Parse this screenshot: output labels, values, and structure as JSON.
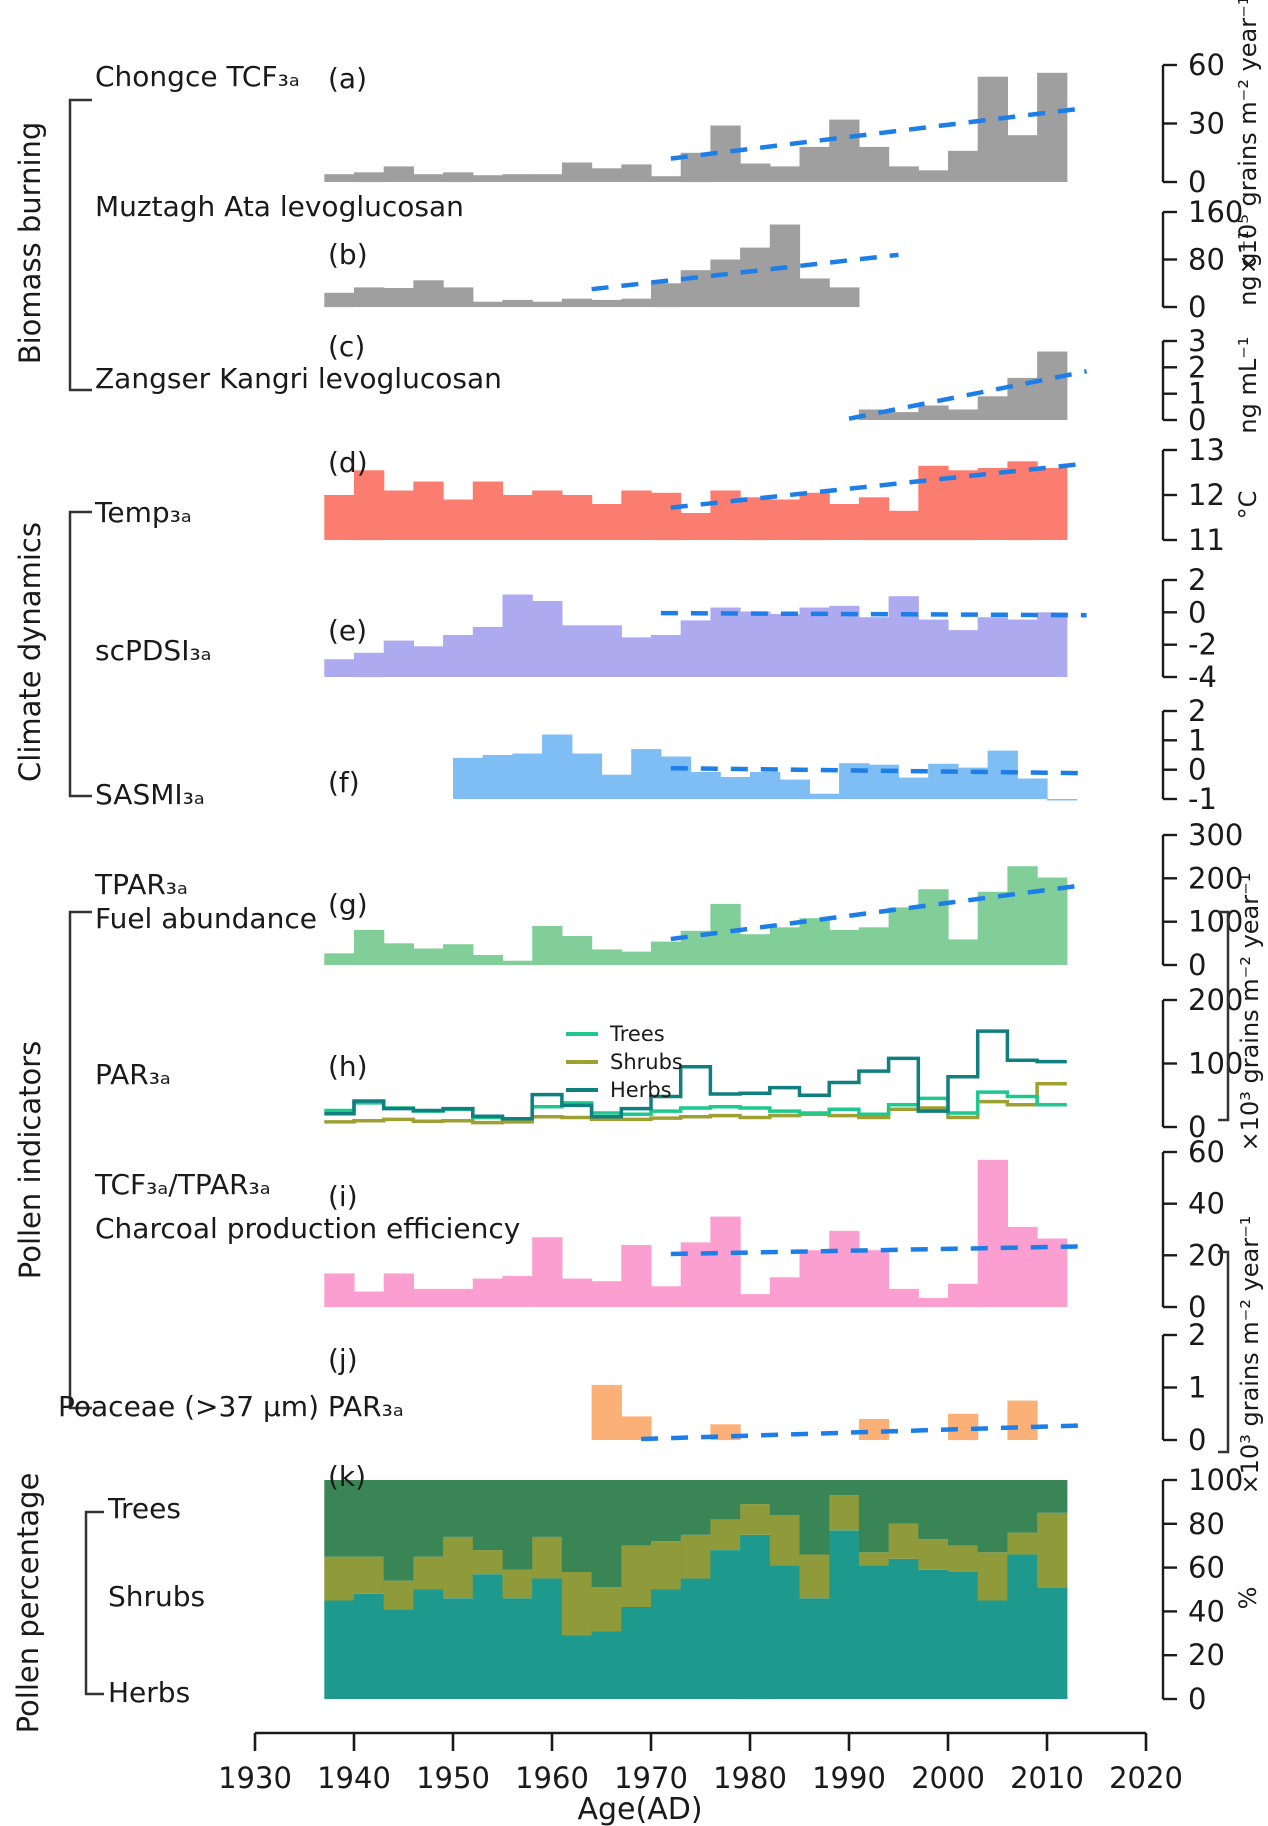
{
  "figure_colors": {
    "gray_bar": "#9f9f9f",
    "temp_red": "#fb7d70",
    "pdsi_purple": "#aeaaf0",
    "sasmi_blue": "#7fbdf5",
    "tpar_green": "#81ce99",
    "pink": "#fb9ed0",
    "orange": "#fbb077",
    "trend_blue": "#1e7ee8",
    "trees_line": "#1dc98c",
    "shrubs_line": "#9fa032",
    "herbs_line": "#107f7f",
    "k_trees": "#3a8556",
    "k_shrubs": "#8f9a3b",
    "k_herbs": "#1d998d",
    "axis": "#1a1a1a",
    "bracket": "#333333"
  },
  "groups": {
    "biomass": "Biomass burning",
    "climate": "Climate dynamics",
    "pollen_ind": "Pollen indicators",
    "pollen_pct": "Pollen percentage"
  },
  "panels": {
    "a": {
      "title": "Chongce TCF₃ₐ",
      "letter": "(a)"
    },
    "b": {
      "title": "Muztagh Ata levoglucosan",
      "letter": "(b)"
    },
    "c": {
      "title": "Zangser Kangri levoglucosan",
      "letter": "(c)"
    },
    "d": {
      "title": "Temp₃ₐ",
      "letter": "(d)"
    },
    "e": {
      "title": "scPDSI₃ₐ",
      "letter": "(e)"
    },
    "f": {
      "title": "SASMI₃ₐ",
      "letter": "(f)"
    },
    "g": {
      "title": "TPAR₃ₐ",
      "subtitle": "Fuel abundance",
      "letter": "(g)"
    },
    "h": {
      "title": "PAR₃ₐ",
      "letter": "(h)"
    },
    "i": {
      "title": "TCF₃ₐ/TPAR₃ₐ",
      "subtitle": "Charcoal production efficiency",
      "letter": "(i)"
    },
    "j": {
      "title": "Poaceae (>37 μm) PAR₃ₐ",
      "letter": "(j)"
    },
    "k": {
      "letter": "(k)",
      "row_labels": [
        "Trees",
        "Shrubs",
        "Herbs"
      ]
    }
  },
  "legend": {
    "entries": [
      {
        "label": "Trees",
        "color": "#1dc98c"
      },
      {
        "label": "Shrubs",
        "color": "#9fa032"
      },
      {
        "label": "Herbs",
        "color": "#107f7f"
      }
    ]
  },
  "units": {
    "a": "×10⁵ grains m⁻² year⁻¹",
    "b": "ng g⁻¹",
    "c": "ng mL⁻¹",
    "d": "°C",
    "gh": "×10³ grains m⁻² year⁻¹",
    "ij": "×10³ grains m⁻² year⁻¹",
    "k": "%"
  },
  "x_axis": {
    "label": "Age(AD)",
    "ticks": [
      1930,
      1940,
      1950,
      1960,
      1970,
      1980,
      1990,
      2000,
      2010,
      2020
    ],
    "range": [
      1930,
      2020
    ]
  },
  "chart_data": [
    {
      "id": "a",
      "type": "bar",
      "name": "Chongce TCF3a charcoal flux",
      "color": "#9f9f9f",
      "x_start": 1937,
      "x_step": 3,
      "base": 0,
      "ylim": [
        0,
        60
      ],
      "yticks": [
        60,
        30,
        0
      ],
      "values": [
        4,
        5,
        8,
        4,
        5,
        3.5,
        4,
        4,
        10,
        7,
        9,
        3,
        15,
        29,
        9.5,
        8,
        18,
        32,
        18,
        8,
        6,
        16,
        54,
        24,
        56
      ],
      "trend": {
        "x1": 1972,
        "v1": 12,
        "x2": 2014,
        "v2": 38
      }
    },
    {
      "id": "b",
      "type": "bar",
      "name": "Muztagh Ata levoglucosan",
      "color": "#9f9f9f",
      "x_start": 1937,
      "x_step": 3,
      "base": 0,
      "ylim": [
        0,
        160
      ],
      "yticks": [
        160,
        80,
        0
      ],
      "values": [
        24,
        33,
        32,
        45,
        33,
        9,
        12,
        9,
        14,
        12,
        14,
        40,
        62,
        80,
        100,
        139,
        48,
        33
      ],
      "trend": {
        "x1": 1964,
        "v1": 30,
        "x2": 1995,
        "v2": 88
      }
    },
    {
      "id": "c",
      "type": "bar",
      "name": "Zangser Kangri levoglucosan",
      "color": "#9f9f9f",
      "x_start": 1991,
      "x_step": 3,
      "base": 0,
      "ylim": [
        0,
        3
      ],
      "yticks": [
        3,
        2,
        1,
        0
      ],
      "values": [
        0.4,
        0.3,
        0.55,
        0.4,
        0.9,
        1.6,
        2.6
      ],
      "trend": {
        "x1": 1990,
        "v1": 0.05,
        "x2": 2014,
        "v2": 1.85
      }
    },
    {
      "id": "d",
      "type": "bar",
      "name": "Temperature 3-yr average",
      "color": "#fb7d70",
      "x_start": 1937,
      "x_step": 3,
      "base": 11,
      "ylim": [
        11,
        13
      ],
      "yticks": [
        13,
        12,
        11
      ],
      "values": [
        12.0,
        12.55,
        12.1,
        12.3,
        11.9,
        12.3,
        12.0,
        12.1,
        12.0,
        11.8,
        12.1,
        12.05,
        11.6,
        12.1,
        11.95,
        11.9,
        12.05,
        11.8,
        11.95,
        11.65,
        12.65,
        12.55,
        12.6,
        12.75,
        12.6
      ],
      "trend": {
        "x1": 1972,
        "v1": 11.72,
        "x2": 2014,
        "v2": 12.7
      }
    },
    {
      "id": "e",
      "type": "bar",
      "name": "scPDSI 3-yr average",
      "color": "#aeaaf0",
      "x_start": 1937,
      "x_step": 3,
      "base": -4,
      "ylim": [
        -4,
        2
      ],
      "yticks": [
        2,
        0,
        -2,
        -4
      ],
      "values": [
        -2.9,
        -2.5,
        -1.75,
        -2.1,
        -1.4,
        -0.9,
        1.1,
        0.7,
        -0.8,
        -0.8,
        -1.55,
        -1.4,
        -0.5,
        0.3,
        0.05,
        -0.1,
        0.3,
        0.4,
        -0.3,
        1.0,
        -0.45,
        -1.1,
        -0.3,
        -0.45,
        0.0
      ],
      "trend": {
        "x1": 1971,
        "v1": -0.05,
        "x2": 2014,
        "v2": -0.18
      }
    },
    {
      "id": "f",
      "type": "bar",
      "name": "SASMI 3-yr average",
      "color": "#7fbdf5",
      "x_start": 1950,
      "x_step": 3,
      "base": -1,
      "ylim": [
        -1,
        2
      ],
      "yticks": [
        2,
        1,
        0,
        -1
      ],
      "values": [
        0.4,
        0.5,
        0.55,
        1.2,
        0.55,
        -0.17,
        0.7,
        0.45,
        -0.08,
        -0.25,
        -0.08,
        -0.34,
        -0.82,
        0.22,
        0.17,
        -0.27,
        0.2,
        0.07,
        0.65,
        -0.3,
        -1.05
      ],
      "trend": {
        "x1": 1972,
        "v1": 0.05,
        "x2": 2014,
        "v2": -0.12
      }
    },
    {
      "id": "g",
      "type": "bar",
      "name": "TPAR fuel abundance",
      "color": "#81ce99",
      "x_start": 1937,
      "x_step": 3,
      "base": 0,
      "ylim": [
        0,
        300
      ],
      "yticks": [
        300,
        200,
        100,
        0
      ],
      "values": [
        27,
        81,
        50,
        38,
        48,
        23,
        10,
        90,
        67,
        36,
        31,
        54,
        79,
        141,
        71,
        87,
        108,
        81,
        87,
        133,
        175,
        59,
        169,
        228,
        202
      ],
      "trend": {
        "x1": 1972,
        "v1": 60,
        "x2": 2014,
        "v2": 185
      }
    },
    {
      "id": "h",
      "type": "step",
      "name": "PAR by growth form",
      "x_start": 1937,
      "x_step": 3,
      "ylim": [
        0,
        200
      ],
      "yticks": [
        200,
        100,
        0
      ],
      "series": [
        {
          "name": "Shrubs",
          "color": "#9fa032",
          "values": [
            8,
            10,
            12,
            9,
            10,
            7,
            8,
            16,
            15,
            12,
            12,
            14,
            16,
            18,
            15,
            18,
            20,
            18,
            15,
            28,
            30,
            15,
            40,
            35,
            68
          ]
        },
        {
          "name": "Trees",
          "color": "#1dc98c",
          "values": [
            26,
            38,
            30,
            25,
            28,
            15,
            13,
            32,
            38,
            22,
            20,
            25,
            30,
            32,
            30,
            25,
            22,
            28,
            20,
            35,
            45,
            22,
            55,
            48,
            35
          ]
        },
        {
          "name": "Herbs",
          "color": "#107f7f",
          "values": [
            21,
            41,
            29,
            26,
            29,
            17,
            13,
            51,
            34,
            16,
            29,
            48,
            95,
            52,
            53,
            62,
            50,
            70,
            88,
            108,
            25,
            79,
            151,
            105,
            103
          ]
        }
      ]
    },
    {
      "id": "i",
      "type": "bar",
      "name": "TCF/TPAR charcoal production efficiency",
      "color": "#fb9ed0",
      "x_start": 1937,
      "x_step": 3,
      "base": 0,
      "ylim": [
        0,
        60
      ],
      "yticks": [
        60,
        40,
        20,
        0
      ],
      "values": [
        13,
        6,
        13,
        7,
        7,
        11,
        12,
        27,
        11,
        10,
        24,
        8,
        25,
        35,
        5,
        11.5,
        22,
        29.5,
        22,
        7,
        3.5,
        9,
        57,
        31,
        26.5
      ],
      "trend": {
        "x1": 1972,
        "v1": 20.5,
        "x2": 2014,
        "v2": 23.5
      }
    },
    {
      "id": "j",
      "type": "bar",
      "name": "Poaceae >37um PAR",
      "color": "#fbb077",
      "x_start": 1937,
      "x_step": 3,
      "base": 0,
      "ylim": [
        0,
        2
      ],
      "yticks": [
        2,
        1,
        0
      ],
      "values": [
        0,
        0,
        0,
        0,
        0,
        0,
        0,
        0,
        0,
        1.05,
        0.45,
        0,
        0,
        0.3,
        0,
        0,
        0,
        0,
        0.4,
        0,
        0,
        0.5,
        0,
        0.75,
        0
      ],
      "trend": {
        "x1": 1969,
        "v1": 0.02,
        "x2": 2014,
        "v2": 0.28
      }
    },
    {
      "id": "k",
      "type": "stacked",
      "name": "Pollen percentage",
      "x_start": 1937,
      "x_step": 3,
      "ylim": [
        0,
        100
      ],
      "yticks": [
        100,
        80,
        60,
        40,
        20,
        0
      ],
      "series": [
        {
          "name": "Herbs",
          "color": "#1d998d",
          "values": [
            45,
            48,
            41,
            50,
            46,
            57,
            46,
            55,
            29,
            31,
            42,
            50,
            55,
            68,
            75,
            61,
            46,
            77,
            61,
            64,
            59,
            58,
            45,
            66,
            51
          ]
        },
        {
          "name": "Shrubs",
          "color": "#8f9a3b",
          "values": [
            20,
            17,
            13,
            15,
            28,
            11,
            13,
            19,
            29,
            20,
            28,
            22,
            20,
            14,
            14,
            23,
            20,
            16,
            6,
            16,
            14,
            12,
            22,
            10,
            34
          ]
        },
        {
          "name": "Trees",
          "color": "#3a8556",
          "values": [
            35,
            35,
            46,
            35,
            26,
            32,
            41,
            26,
            42,
            49,
            30,
            28,
            25,
            18,
            11,
            16,
            34,
            7,
            33,
            20,
            27,
            30,
            33,
            24,
            15
          ]
        }
      ]
    }
  ]
}
